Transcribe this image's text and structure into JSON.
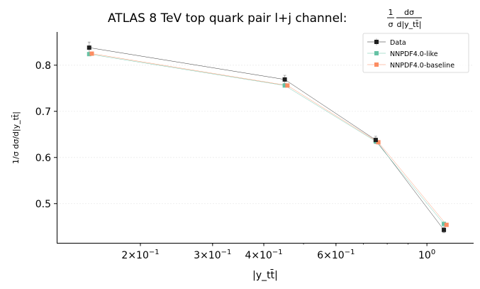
{
  "chart_data": {
    "type": "line",
    "title": "ATLAS 8 TeV top quark pair l+j channel: 1/σ dσ/d|y_tt̄|",
    "title_main": "ATLAS 8 TeV top quark pair l+j channel: ",
    "title_frac_num": "1",
    "title_frac_den": "σ",
    "title_frac_num2": "dσ",
    "title_frac_den2": "d|y_tt̄|",
    "xlabel": "|y_tt̄|",
    "ylabel": "1/σ dσ/d|y_tt̄|",
    "xscale": "log",
    "xlim": [
      0.125,
      1.3
    ],
    "ylim": [
      0.415,
      0.872
    ],
    "x": [
      0.15,
      0.45,
      0.75,
      1.1
    ],
    "x_ticks": [
      {
        "value": 0.2,
        "mant": "2",
        "exp": "−1"
      },
      {
        "value": 0.3,
        "mant": "3",
        "exp": "−1"
      },
      {
        "value": 0.4,
        "mant": "4",
        "exp": "−1"
      },
      {
        "value": 0.6,
        "mant": "6",
        "exp": "−1"
      },
      {
        "value": 1.0,
        "mant": "",
        "exp": "0"
      }
    ],
    "y_ticks": [
      0.5,
      0.6,
      0.7,
      0.8
    ],
    "grid": true,
    "legend_position": "top-right",
    "series": [
      {
        "name": "Data",
        "color": "#1f1f1f",
        "values": [
          0.838,
          0.769,
          0.638,
          0.443
        ],
        "errors": [
          0.012,
          0.009,
          0.008,
          0.006
        ]
      },
      {
        "name": "NNPDF4.0-like",
        "color": "#66c2a5",
        "values": [
          0.824,
          0.756,
          0.635,
          0.456
        ],
        "errors": []
      },
      {
        "name": "NNPDF4.0-baseline",
        "color": "#fc8d62",
        "values": [
          0.825,
          0.756,
          0.633,
          0.454
        ],
        "errors": []
      }
    ]
  }
}
